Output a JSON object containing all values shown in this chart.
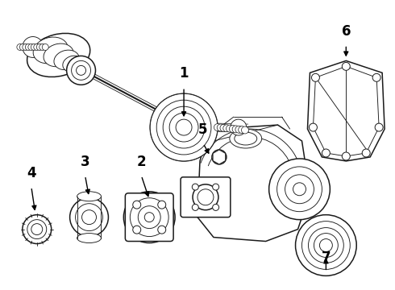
{
  "background_color": "#ffffff",
  "figsize": [
    4.9,
    3.6
  ],
  "dpi": 100,
  "image_b64": ""
}
